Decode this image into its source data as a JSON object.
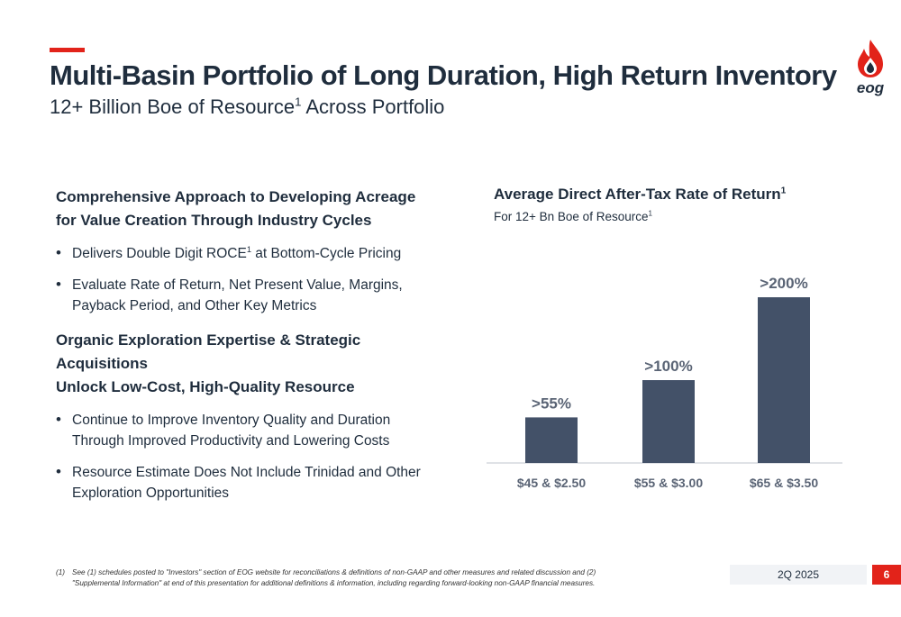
{
  "header": {
    "title": "Multi-Basin Portfolio of Long Duration, High Return Inventory",
    "subtitle_main": "12+ Billion Boe of Resource",
    "subtitle_sup": "1",
    "subtitle_rest": " Across Portfolio",
    "logo_text": "eog"
  },
  "left": {
    "section1": {
      "line1": "Comprehensive Approach to Developing Acreage",
      "line2": "for Value Creation Through Industry Cycles"
    },
    "bullet1_pre": "Delivers Double Digit ROCE",
    "bullet1_sup": "1",
    "bullet1_post": " at Bottom-Cycle Pricing",
    "bullet2_line1": "Evaluate Rate of Return, Net Present Value, Margins,",
    "bullet2_line2": "Payback Period, and Other Key Metrics",
    "section2": {
      "line1": "Organic Exploration Expertise & Strategic Acquisitions",
      "line2": "Unlock Low-Cost, High-Quality Resource"
    },
    "bullet3_line1": "Continue to Improve Inventory Quality and Duration",
    "bullet3_line2": "Through Improved Productivity and Lowering Costs",
    "bullet4_line1": "Resource Estimate Does Not Include Trinidad and Other",
    "bullet4_line2": "Exploration Opportunities"
  },
  "chart_header": {
    "title_main": "Average Direct After-Tax Rate of Return",
    "title_sup": "1",
    "sub_main": "For 12+ Bn Boe of Resource",
    "sub_sup": "1"
  },
  "chart_data": {
    "type": "bar",
    "categories": [
      "$45 & $2.50",
      "$55 & $3.00",
      "$65 & $3.50"
    ],
    "values": [
      55,
      100,
      200
    ],
    "data_labels": [
      ">55%",
      ">100%",
      ">200%"
    ],
    "title": "Average Direct After-Tax Rate of Return",
    "xlabel": "",
    "ylabel": "",
    "ylim": [
      0,
      200
    ],
    "grid": false,
    "bar_color": "#435168"
  },
  "footer": {
    "footnote_mark": "(1)",
    "footnote_text": "See (1) schedules posted to \"Investors\" section of EOG website for reconciliations & definitions of non-GAAP and other measures and related discussion and (2) \"Supplemental Information\" at end of this presentation for additional definitions & information, including regarding forward-looking non-GAAP financial measures.",
    "date": "2Q 2025",
    "page_number": "6"
  },
  "colors": {
    "accent": "#e2231a",
    "text": "#1f2d3d",
    "bar": "#435168"
  }
}
